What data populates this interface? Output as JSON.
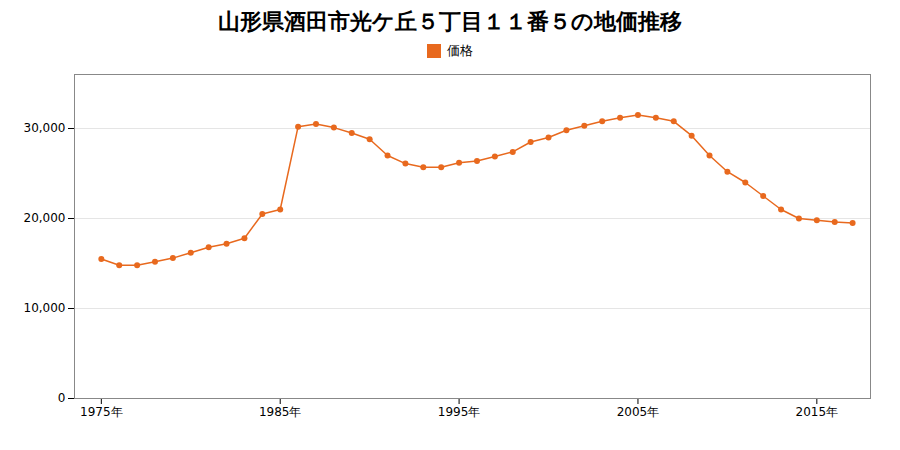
{
  "chart_data": {
    "type": "line",
    "title": "山形県酒田市光ケ丘５丁目１１番５の地価推移",
    "x": [
      1975,
      1976,
      1977,
      1978,
      1979,
      1980,
      1981,
      1982,
      1983,
      1984,
      1985,
      1986,
      1987,
      1988,
      1989,
      1990,
      1991,
      1992,
      1993,
      1994,
      1995,
      1996,
      1997,
      1998,
      1999,
      2000,
      2001,
      2002,
      2003,
      2004,
      2005,
      2006,
      2007,
      2008,
      2009,
      2010,
      2011,
      2012,
      2013,
      2014,
      2015,
      2016,
      2017
    ],
    "series": [
      {
        "name": "価格",
        "color": "#e8691e",
        "marker": "circle",
        "values": [
          15500,
          14800,
          14800,
          15200,
          15600,
          16200,
          16800,
          17200,
          17800,
          20500,
          21000,
          30200,
          30500,
          30100,
          29500,
          28800,
          27000,
          26100,
          25700,
          25700,
          26200,
          26400,
          26900,
          27400,
          28500,
          29000,
          29800,
          30300,
          30800,
          31200,
          31500,
          31200,
          30800,
          29200,
          27000,
          25200,
          24000,
          22500,
          21000,
          20000,
          19800,
          19600,
          19500
        ]
      }
    ],
    "xlim": [
      1973.5,
      2018
    ],
    "xticks": [
      {
        "value": 1975,
        "label": "1975年"
      },
      {
        "value": 1985,
        "label": "1985年"
      },
      {
        "value": 1995,
        "label": "1995年"
      },
      {
        "value": 2005,
        "label": "2005年"
      },
      {
        "value": 2015,
        "label": "2015年"
      }
    ],
    "ylim": [
      0,
      36000
    ],
    "yticks": [
      0,
      {
        "value": 10000,
        "label": "10,000"
      },
      {
        "value": 20000,
        "label": "20,000"
      },
      {
        "value": 30000,
        "label": "30,000"
      }
    ],
    "grid": "y",
    "legend": "top"
  }
}
